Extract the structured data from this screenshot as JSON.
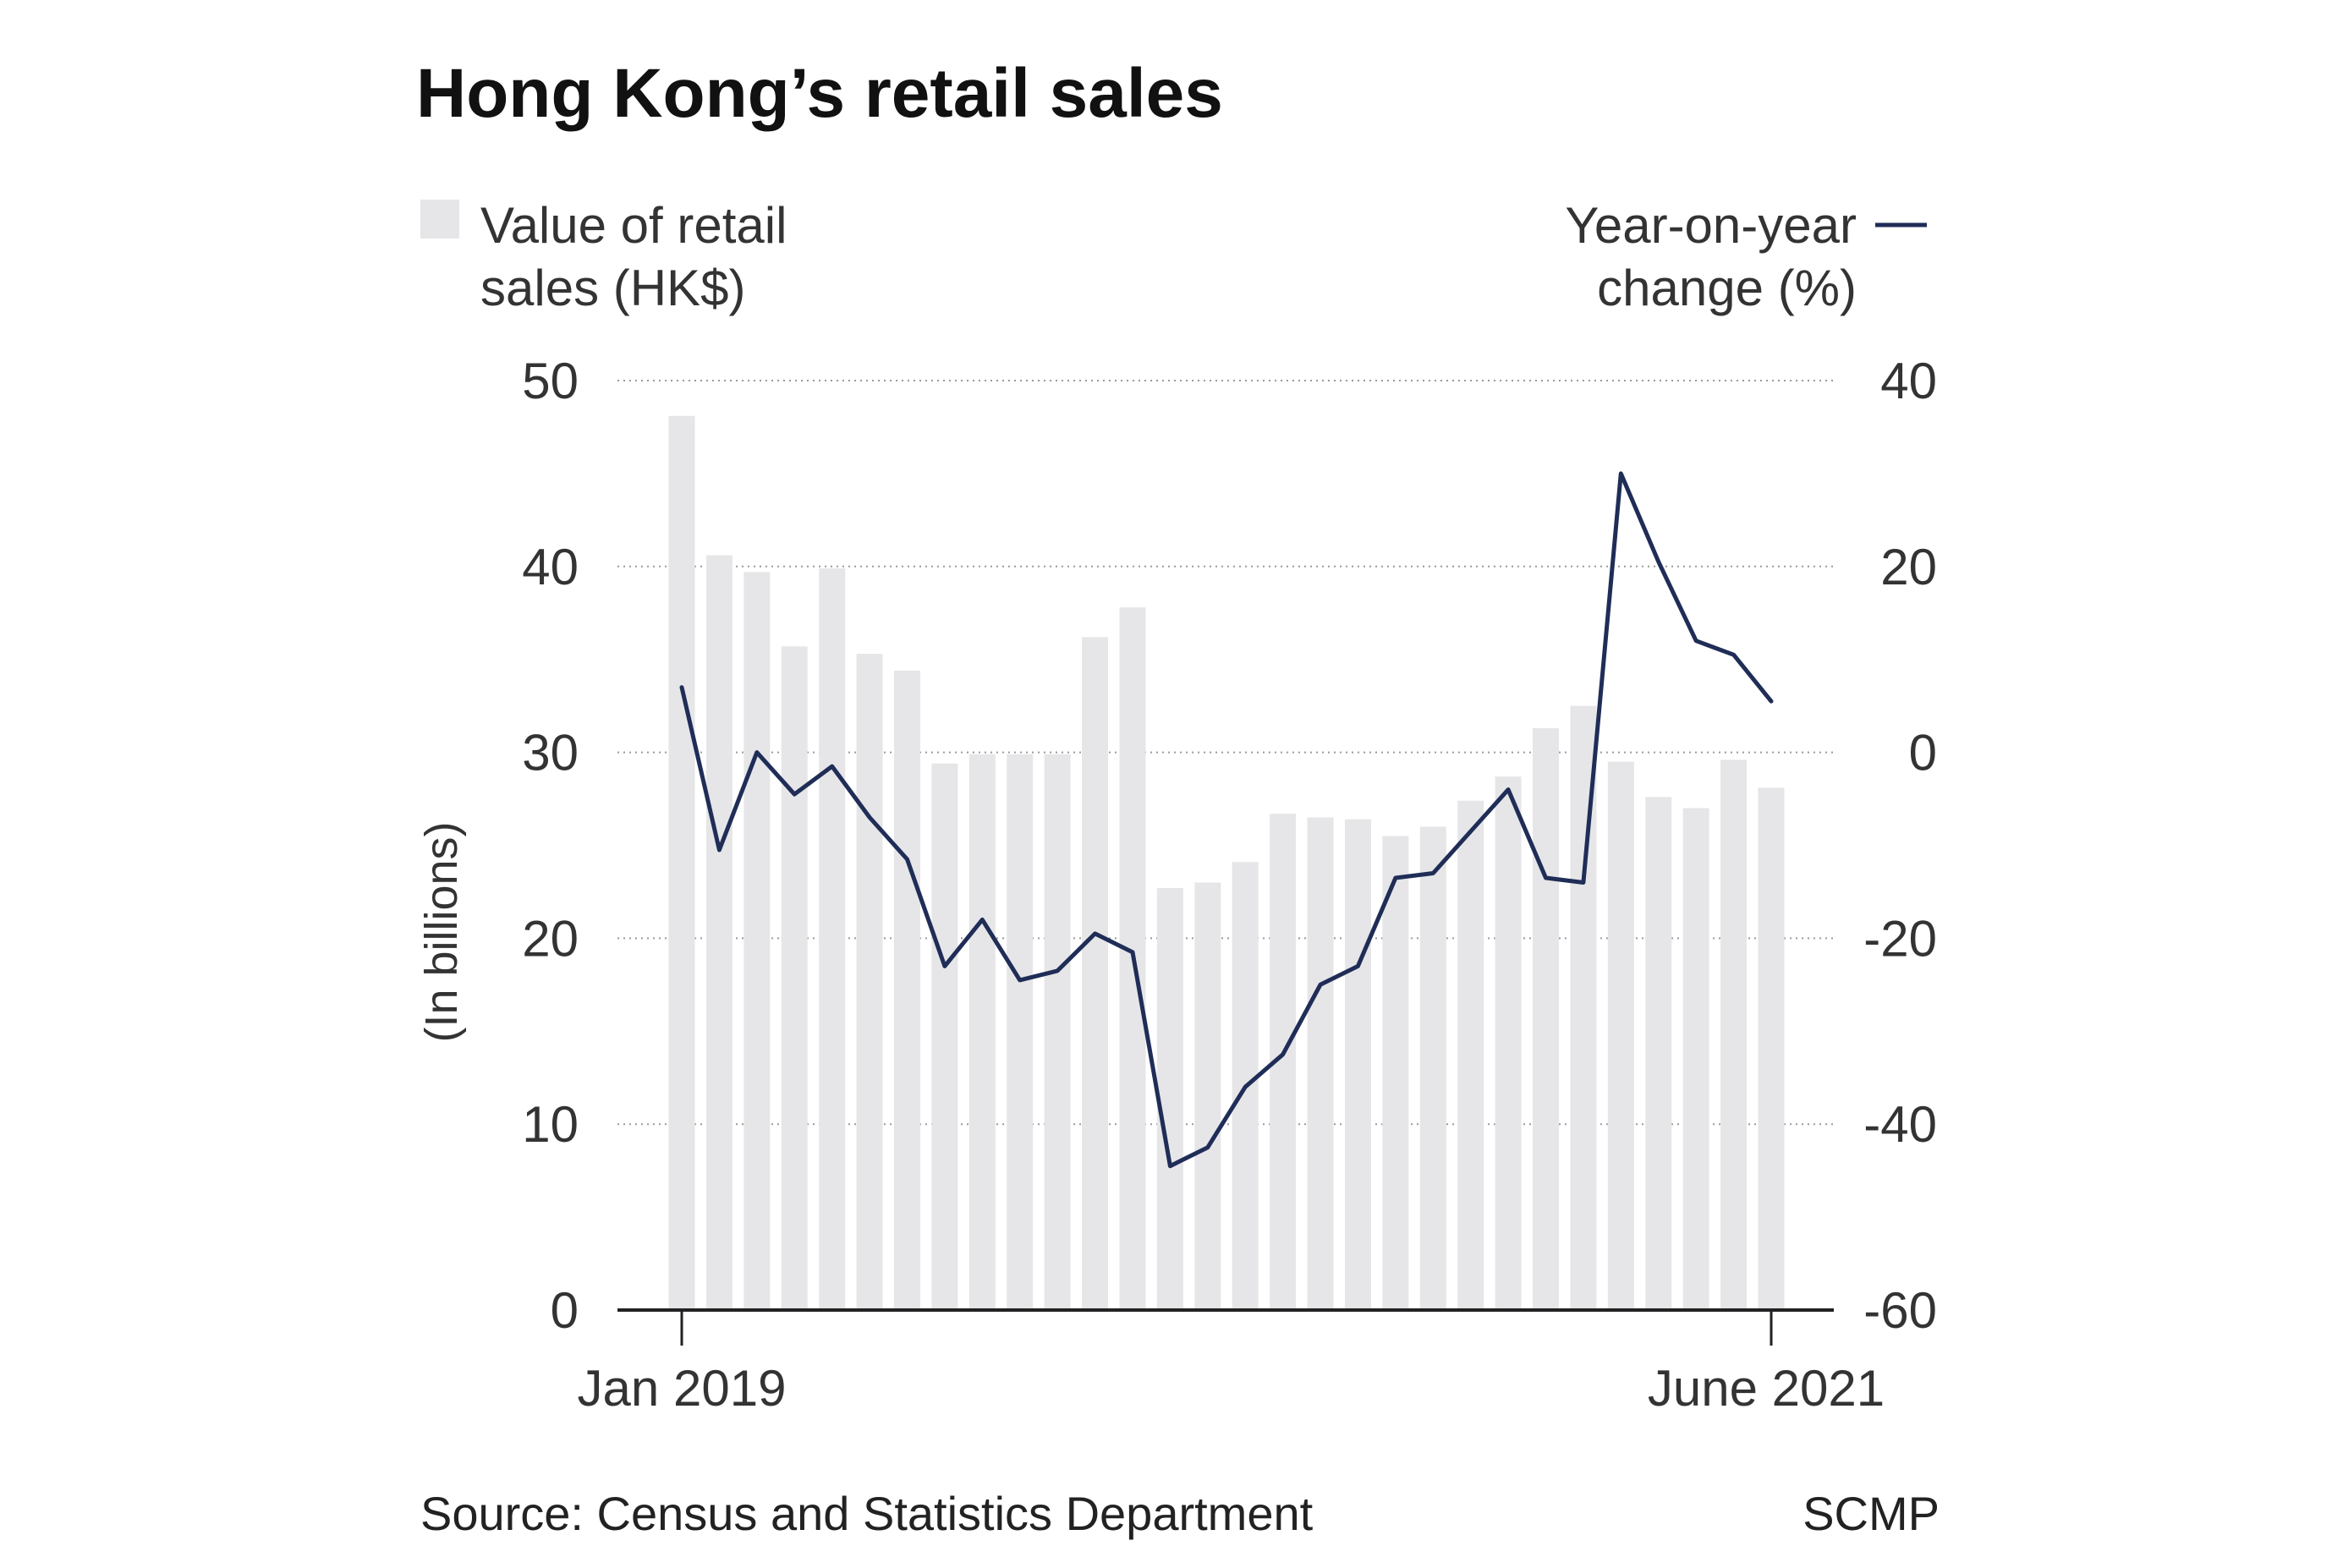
{
  "chart_data": {
    "type": "bar+line",
    "title": "Hong Kong’s retail sales",
    "legend": {
      "bars_line1": "Value of retail",
      "bars_line2": "sales (HK$)",
      "line_line1": "Year-on-year",
      "line_line2": "change (%)"
    },
    "left_axis": {
      "label": "(In billions)",
      "ylim": [
        0,
        50
      ],
      "ticks": [
        0,
        10,
        20,
        30,
        40,
        50
      ]
    },
    "right_axis": {
      "ylim": [
        -60,
        40
      ],
      "ticks": [
        -60,
        -40,
        -20,
        0,
        20,
        40
      ]
    },
    "x_labels": {
      "start": "Jan 2019",
      "end": "June 2021"
    },
    "periods": 30,
    "series": [
      {
        "name": "Value of retail sales (HK$)",
        "axis": "left",
        "type": "bar",
        "color": "#e6e6e8",
        "values": [
          48.1,
          40.6,
          39.7,
          35.7,
          39.9,
          35.3,
          34.4,
          29.4,
          29.9,
          29.9,
          29.9,
          36.2,
          37.8,
          22.7,
          23.0,
          24.1,
          26.7,
          26.5,
          26.4,
          25.5,
          26.0,
          27.4,
          28.7,
          31.3,
          32.5,
          29.5,
          27.6,
          27.0,
          29.6,
          28.1
        ]
      },
      {
        "name": "Year-on-year change (%)",
        "axis": "right",
        "type": "line",
        "color": "#1f2d57",
        "values": [
          7.0,
          -10.5,
          0.0,
          -4.5,
          -1.5,
          -7.0,
          -11.5,
          -23.0,
          -18.0,
          -24.5,
          -23.5,
          -19.5,
          -21.5,
          -44.5,
          -42.5,
          -36.0,
          -32.5,
          -25.0,
          -23.0,
          -13.5,
          -13.0,
          -8.5,
          -4.0,
          -13.5,
          -14.0,
          30.0,
          20.5,
          12.0,
          10.5,
          5.5
        ]
      }
    ],
    "footer": {
      "source": "Source: Census and Statistics Department",
      "credit": "SCMP"
    }
  }
}
